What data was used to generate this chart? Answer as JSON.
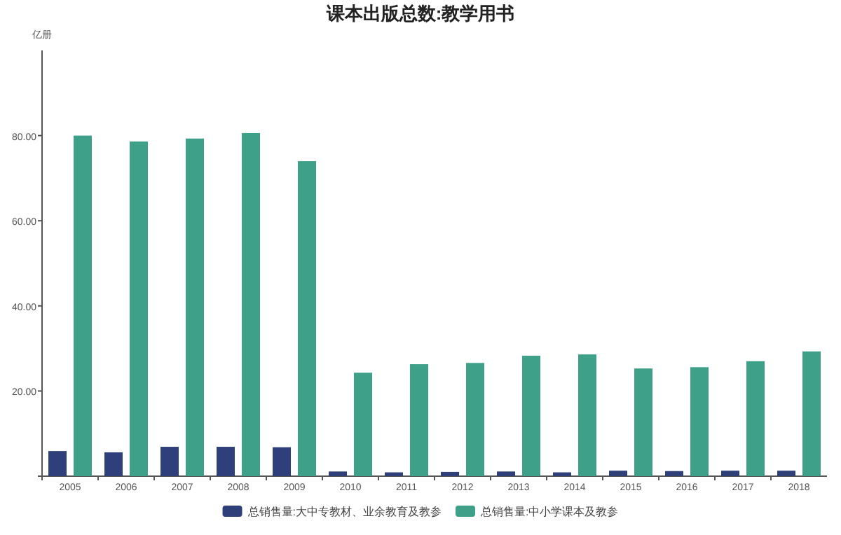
{
  "chart_data": {
    "type": "bar",
    "title": "课本出版总数:教学用书",
    "ylabel": "亿册",
    "categories": [
      "2005",
      "2006",
      "2007",
      "2008",
      "2009",
      "2010",
      "2011",
      "2012",
      "2013",
      "2014",
      "2015",
      "2016",
      "2017",
      "2018"
    ],
    "series": [
      {
        "name": "总销售量:大中专教材、业余教育及教参",
        "color": "#2f3f7a",
        "values": [
          5.9,
          5.6,
          6.9,
          6.9,
          6.8,
          1.1,
          0.9,
          1.0,
          1.1,
          0.9,
          1.3,
          1.2,
          1.3,
          1.3
        ]
      },
      {
        "name": "总销售量:中小学课本及教参",
        "color": "#3fa08a",
        "values": [
          80.0,
          78.6,
          79.3,
          80.6,
          74.0,
          24.3,
          26.3,
          26.6,
          28.3,
          28.6,
          25.3,
          25.6,
          27.0,
          29.3
        ]
      }
    ],
    "ylim": [
      0,
      100
    ],
    "yticks": [
      {
        "value": 0,
        "label": null
      },
      {
        "value": 20,
        "label": "20.00"
      },
      {
        "value": 40,
        "label": "40.00"
      },
      {
        "value": 60,
        "label": "60.00"
      },
      {
        "value": 80,
        "label": "80.00"
      }
    ],
    "legend": "bottom"
  }
}
